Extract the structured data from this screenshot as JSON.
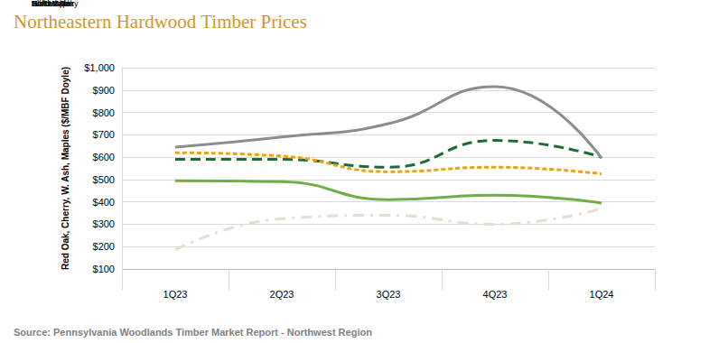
{
  "chart_data": {
    "type": "line",
    "title": "Northeastern Hardwood Timber Prices",
    "source": "Source: Pennsylvania Woodlands Timber Market Report - Northwest Region",
    "y_label": "Red Oak, Cherry, W. Ash, Maples ($/MBF Doyle)",
    "categories": [
      "1Q23",
      "2Q23",
      "3Q23",
      "4Q23",
      "1Q24"
    ],
    "series": [
      {
        "name": "N. Red Oak",
        "color": "#1e6b33",
        "line_style": "dashed",
        "values": [
          590,
          590,
          555,
          675,
          600
        ]
      },
      {
        "name": "Black Cherry",
        "color": "#8c8c8c",
        "line_style": "solid",
        "values": [
          645,
          690,
          750,
          915,
          595
        ]
      },
      {
        "name": "White Ash",
        "color": "#e6dccd",
        "line_style": "dashdot",
        "values": [
          185,
          325,
          340,
          300,
          370
        ]
      },
      {
        "name": "Hard Maple",
        "color": "#e8a317",
        "line_style": "short_dash",
        "values": [
          620,
          605,
          535,
          555,
          525
        ]
      },
      {
        "name": "Soft Maple",
        "color": "#70ad47",
        "line_style": "solid",
        "values": [
          495,
          490,
          410,
          430,
          395
        ]
      }
    ],
    "ylim": [
      100,
      1000
    ],
    "yticks": [
      {
        "value": 100,
        "label": "$100"
      },
      {
        "value": 200,
        "label": "$200"
      },
      {
        "value": 300,
        "label": "$300"
      },
      {
        "value": 400,
        "label": "$400"
      },
      {
        "value": 500,
        "label": "$500"
      },
      {
        "value": 600,
        "label": "$600"
      },
      {
        "value": 700,
        "label": "$700"
      },
      {
        "value": 800,
        "label": "$800"
      },
      {
        "value": 900,
        "label": "$900"
      },
      {
        "value": 1000,
        "label": "$1,000"
      }
    ],
    "grid": true,
    "legend": "bottom"
  }
}
